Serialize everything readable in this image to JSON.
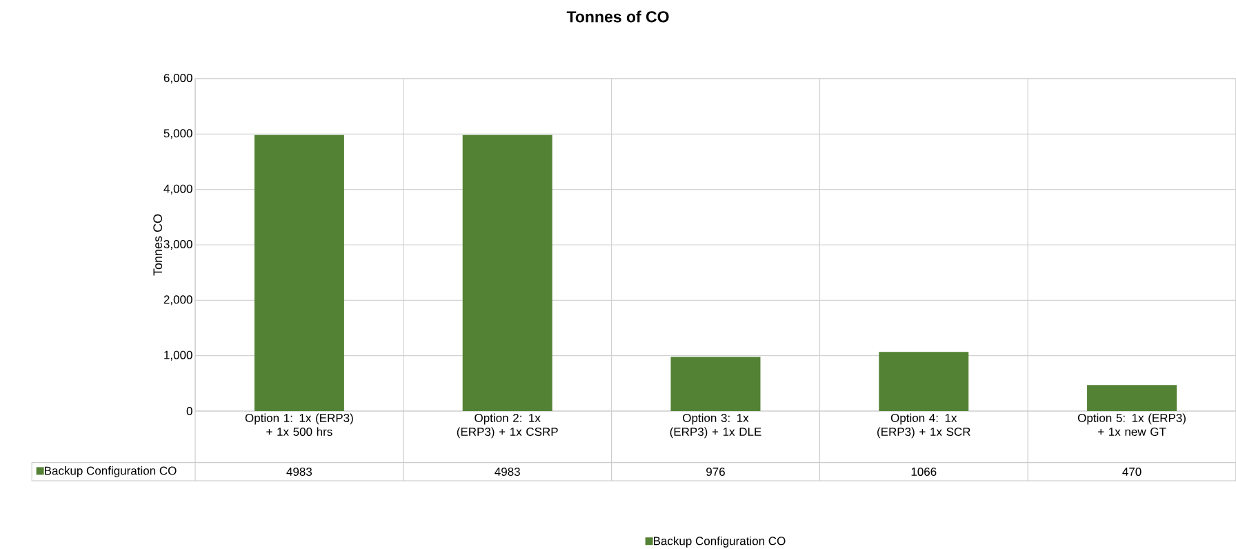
{
  "chart_data": {
    "type": "bar",
    "title": "Tonnes of CO",
    "ylabel": "Tonnes CO",
    "categories": [
      "Option 1: 1x (ERP3) + 1x 500 hrs",
      "Option 2: 1x (ERP3) + 1x CSRP",
      "Option 3: 1x (ERP3) + 1x DLE",
      "Option 4: 1x (ERP3) + 1x SCR",
      "Option 5: 1x (ERP3) + 1x new GT"
    ],
    "series": [
      {
        "name": "Backup Configuration CO",
        "color": "#548235",
        "values": [
          4983,
          4983,
          976,
          1066,
          470
        ]
      }
    ],
    "ylim": [
      0,
      6000
    ],
    "yticks": [
      {
        "value": 0,
        "label": "0"
      },
      {
        "value": 1000,
        "label": "1,000"
      },
      {
        "value": 2000,
        "label": "2,000"
      },
      {
        "value": 3000,
        "label": "3,000"
      },
      {
        "value": 4000,
        "label": "4,000"
      },
      {
        "value": 5000,
        "label": "5,000"
      },
      {
        "value": 6000,
        "label": "6,000"
      }
    ],
    "grid": true,
    "legend": "bottom",
    "data_labels": true
  }
}
